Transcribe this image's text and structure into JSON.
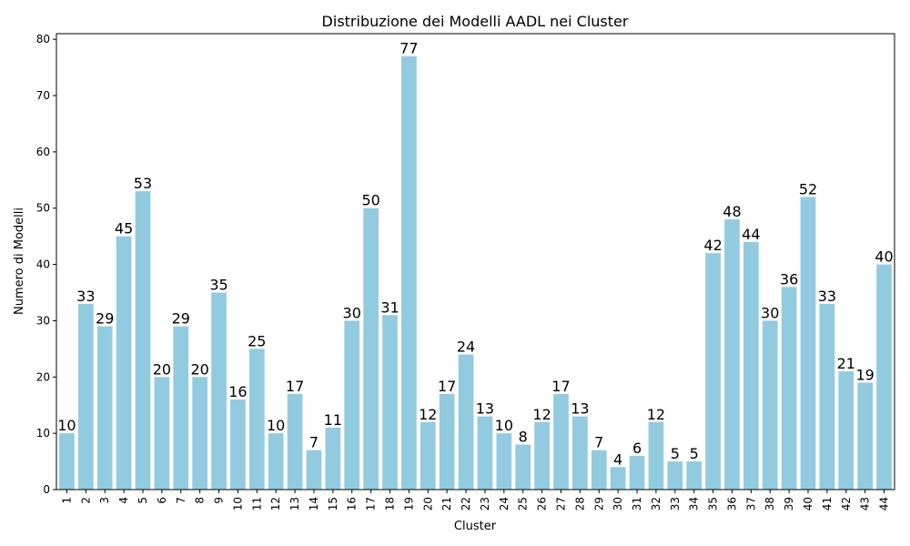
{
  "chart_data": {
    "type": "bar",
    "title": "Distribuzione dei Modelli AADL nei Cluster",
    "xlabel": "Cluster",
    "ylabel": "Numero di Modelli",
    "categories": [
      "1",
      "2",
      "3",
      "4",
      "5",
      "6",
      "7",
      "8",
      "9",
      "10",
      "11",
      "12",
      "13",
      "14",
      "15",
      "16",
      "17",
      "18",
      "19",
      "20",
      "21",
      "22",
      "23",
      "24",
      "25",
      "26",
      "27",
      "28",
      "29",
      "30",
      "31",
      "32",
      "33",
      "34",
      "35",
      "36",
      "37",
      "38",
      "39",
      "40",
      "41",
      "42",
      "43",
      "44"
    ],
    "values": [
      10,
      33,
      29,
      45,
      53,
      20,
      29,
      20,
      35,
      16,
      25,
      10,
      17,
      7,
      11,
      30,
      50,
      31,
      77,
      12,
      17,
      24,
      13,
      10,
      8,
      12,
      17,
      13,
      7,
      4,
      6,
      12,
      5,
      5,
      42,
      48,
      44,
      30,
      36,
      52,
      33,
      21,
      19,
      40
    ],
    "y_ticks": [
      "0",
      "10",
      "20",
      "30",
      "40",
      "50",
      "60",
      "70",
      "80"
    ],
    "ylim": [
      0,
      81
    ],
    "bar_color": "#92cbe0",
    "grid": false,
    "legend": false
  }
}
